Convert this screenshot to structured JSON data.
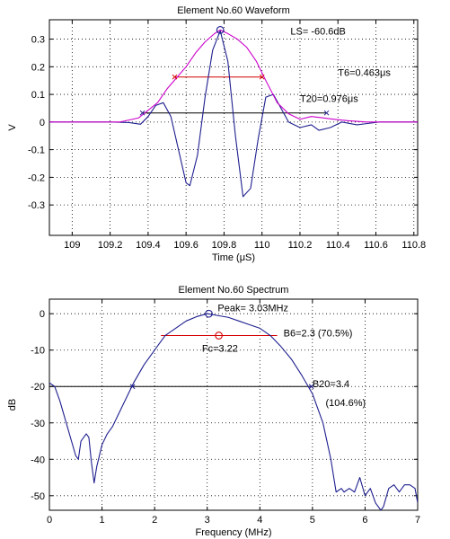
{
  "chart_data": [
    {
      "type": "line",
      "title": "Element No.60 Waveform",
      "xlabel": "Time (μS)",
      "ylabel": "V",
      "xlim": [
        108.88,
        110.82
      ],
      "ylim": [
        -0.41,
        0.37
      ],
      "xticks": [
        109,
        109.2,
        109.4,
        109.6,
        109.8,
        110,
        110.2,
        110.4,
        110.6,
        110.8
      ],
      "xtick_labels": [
        "109",
        "109.2",
        "109.4",
        "109.6",
        "109.8",
        "110",
        "110.2",
        "110.4",
        "110.6",
        "110.8"
      ],
      "yticks": [
        -0.3,
        -0.2,
        -0.1,
        0,
        0.1,
        0.2,
        0.3
      ],
      "ytick_labels": [
        "-0.3",
        "-0.2",
        "-0.1",
        "0",
        "0.1",
        "0.2",
        "0.3"
      ],
      "grid": true,
      "series": [
        {
          "color": "#1f1f8f",
          "x": [
            108.88,
            109.2,
            109.3,
            109.36,
            109.4,
            109.44,
            109.48,
            109.52,
            109.56,
            109.6,
            109.62,
            109.66,
            109.7,
            109.74,
            109.78,
            109.82,
            109.86,
            109.9,
            109.94,
            109.98,
            110.02,
            110.06,
            110.1,
            110.14,
            110.2,
            110.26,
            110.3,
            110.36,
            110.42,
            110.5,
            110.56,
            110.62,
            110.7,
            110.82
          ],
          "y": [
            0.0,
            0.0,
            -0.002,
            -0.008,
            0.02,
            0.06,
            0.07,
            0.02,
            -0.1,
            -0.22,
            -0.23,
            -0.12,
            0.09,
            0.26,
            0.33,
            0.22,
            -0.05,
            -0.27,
            -0.24,
            -0.06,
            0.09,
            0.1,
            0.05,
            0.0,
            -0.02,
            -0.01,
            -0.03,
            -0.02,
            0.0,
            -0.01,
            -0.005,
            0.0,
            0.0,
            0.0
          ]
        },
        {
          "color": "#cc00cc",
          "x": [
            108.88,
            109.25,
            109.35,
            109.45,
            109.5,
            109.55,
            109.6,
            109.65,
            109.7,
            109.75,
            109.78,
            109.82,
            109.87,
            109.92,
            109.97,
            110.02,
            110.08,
            110.14,
            110.2,
            110.26,
            110.32,
            110.38,
            110.45,
            110.55,
            110.62,
            110.7,
            110.82
          ],
          "y": [
            0.0,
            0.0,
            0.015,
            0.07,
            0.12,
            0.16,
            0.2,
            0.25,
            0.29,
            0.32,
            0.333,
            0.32,
            0.3,
            0.27,
            0.22,
            0.15,
            0.07,
            0.03,
            0.01,
            0.02,
            0.015,
            0.01,
            0.005,
            0.0,
            0.0,
            0.0,
            0.0
          ]
        }
      ],
      "markers": [
        {
          "name": "peak",
          "x": 109.78,
          "y": 0.333,
          "shape": "circle"
        },
        {
          "name": "t6-start",
          "x": 109.54,
          "y": 0.163,
          "shape": "x"
        },
        {
          "name": "t6-end",
          "x": 110.0,
          "y": 0.163,
          "shape": "x"
        },
        {
          "name": "t20-start",
          "x": 109.37,
          "y": 0.033,
          "shape": "x"
        },
        {
          "name": "t20-end",
          "x": 110.34,
          "y": 0.033,
          "shape": "x"
        }
      ],
      "reference_lines": [
        {
          "name": "t6-line",
          "x": [
            109.54,
            110.0
          ],
          "y": 0.163,
          "color": "#d40000"
        },
        {
          "name": "t20-line",
          "x": [
            109.37,
            110.34
          ],
          "y": 0.033,
          "color": "#000000"
        }
      ],
      "annotations": [
        {
          "name": "ls-label",
          "text": "LS= -60.6dB",
          "x": 110.15,
          "y": 0.33
        },
        {
          "name": "t6-label",
          "text": "T6=0.463μs",
          "x": 110.4,
          "y": 0.18
        },
        {
          "name": "t20-label",
          "text": "T20=0.976μs",
          "x": 110.2,
          "y": 0.085
        }
      ]
    },
    {
      "type": "line",
      "title": "Element No.60 Spectrum",
      "xlabel": "Frequency (MHz)",
      "ylabel": "dB",
      "xlim": [
        0,
        7
      ],
      "ylim": [
        -54,
        4
      ],
      "xticks": [
        0,
        1,
        2,
        3,
        4,
        5,
        6,
        7
      ],
      "xtick_labels": [
        "0",
        "1",
        "2",
        "3",
        "4",
        "5",
        "6",
        "7"
      ],
      "yticks": [
        -50,
        -40,
        -30,
        -20,
        -10,
        0
      ],
      "ytick_labels": [
        "-50",
        "-40",
        "-30",
        "-20",
        "-10",
        "0"
      ],
      "grid": true,
      "series": [
        {
          "color": "#1f1f8f",
          "x": [
            0,
            0.1,
            0.2,
            0.3,
            0.4,
            0.5,
            0.55,
            0.6,
            0.7,
            0.75,
            0.8,
            0.85,
            0.9,
            1.0,
            1.1,
            1.2,
            1.3,
            1.4,
            1.5,
            1.6,
            1.8,
            2.0,
            2.2,
            2.4,
            2.6,
            2.8,
            3.0,
            3.2,
            3.4,
            3.6,
            3.8,
            4.0,
            4.2,
            4.4,
            4.6,
            4.8,
            5.0,
            5.2,
            5.35,
            5.45,
            5.55,
            5.6,
            5.7,
            5.8,
            5.9,
            6.0,
            6.1,
            6.2,
            6.3,
            6.35,
            6.45,
            6.55,
            6.65,
            6.75,
            6.85,
            6.95,
            7.0
          ],
          "y": [
            -19,
            -20,
            -24,
            -29,
            -34,
            -39,
            -40,
            -35,
            -33,
            -34,
            -41,
            -46.5,
            -42,
            -36,
            -33,
            -31,
            -28,
            -25,
            -22,
            -19,
            -14,
            -10,
            -6,
            -4,
            -2,
            -0.8,
            0,
            -0.5,
            -1,
            -2,
            -3,
            -4,
            -6,
            -9,
            -12.5,
            -17,
            -22,
            -30,
            -40,
            -49,
            -48,
            -49,
            -48,
            -49,
            -45,
            -50,
            -48,
            -52,
            -54,
            -53,
            -48,
            -47,
            -49,
            -47,
            -47,
            -48,
            -52
          ]
        }
      ],
      "markers": [
        {
          "name": "peak",
          "x": 3.03,
          "y": 0,
          "shape": "circle"
        },
        {
          "name": "fc",
          "x": 3.22,
          "y": -6,
          "shape": "circle"
        },
        {
          "name": "b20-start",
          "x": 1.58,
          "y": -20,
          "shape": "x"
        },
        {
          "name": "b20-end",
          "x": 4.98,
          "y": -20,
          "shape": "x"
        }
      ],
      "reference_lines": [
        {
          "name": "b6-line",
          "x": [
            2.12,
            4.33
          ],
          "y": -6,
          "color": "#d40000"
        },
        {
          "name": "b20-line",
          "x": [
            0,
            4.98
          ],
          "y": -20,
          "color": "#000000"
        }
      ],
      "annotations": [
        {
          "name": "peak-label",
          "text": "Peak= 3.03MHz",
          "x": 3.2,
          "y": 1.6
        },
        {
          "name": "b6-label",
          "text": "B6=2.3 (70.5%)",
          "x": 4.45,
          "y": -5.2
        },
        {
          "name": "fc-label",
          "text": "Fc=3.22",
          "x": 2.9,
          "y": -9.5
        },
        {
          "name": "b20-label",
          "text": "B20=3.4",
          "x": 5.0,
          "y": -19.2
        },
        {
          "name": "b20-pct-label",
          "text": "(104.6%)",
          "x": 5.25,
          "y": -24.4
        }
      ]
    }
  ]
}
